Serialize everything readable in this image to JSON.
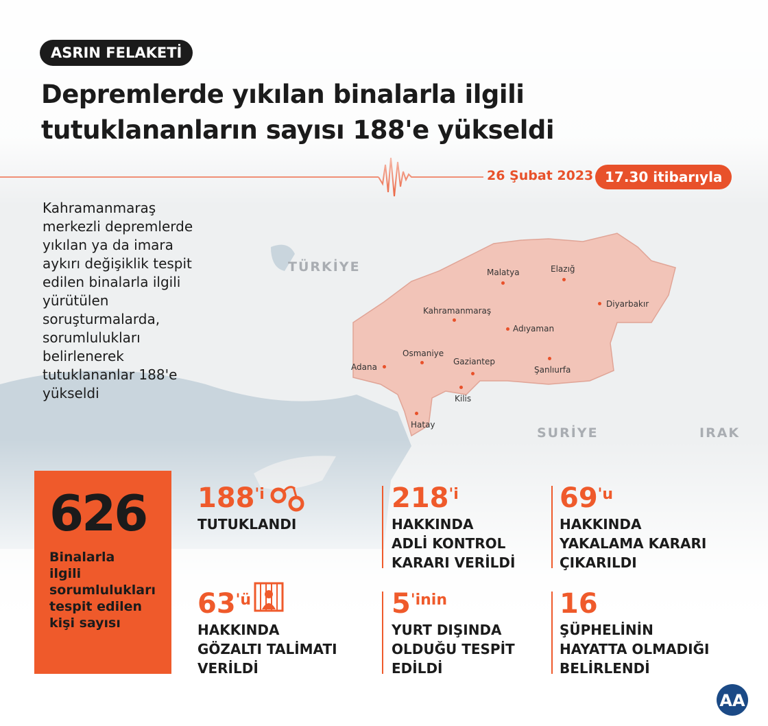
{
  "badge": "ASRIN FELAKETİ",
  "title": [
    "Depremlerde yıkılan binalarla ilgili",
    "tutuklananların sayısı 188'e yükseldi"
  ],
  "date": "26 Şubat 2023",
  "time": "17.30 itibarıyla",
  "paragraph": [
    "Kahramanmaraş",
    "merkezli depremlerde",
    "yıkılan ya da imara",
    "aykırı değişiklik tespit",
    "edilen binalarla ilgili",
    "yürütülen",
    "soruşturmalarda,",
    "sorumlulukları",
    "belirlenerek",
    "tutuklananlar 188'e",
    "yükseldi"
  ],
  "map": {
    "countries": [
      "TÜRKİYE",
      "SURİYE",
      "IRAK"
    ],
    "cities": [
      "Malatya",
      "Elazığ",
      "Diyarbakır",
      "Kahramanmaraş",
      "Adıyaman",
      "Osmaniye",
      "Gaziantep",
      "Şanlıurfa",
      "Adana",
      "Kilis",
      "Hatay"
    ],
    "region_color": "#f2c4b8"
  },
  "total": {
    "value": "626",
    "label": [
      "Binalarla",
      "ilgili",
      "sorumlulukları",
      "tespit edilen",
      "kişi sayısı"
    ]
  },
  "stats": [
    {
      "value": "188",
      "suffix": "'i",
      "label": [
        "TUTUKLANDI"
      ],
      "icon": "handcuffs-icon"
    },
    {
      "value": "218",
      "suffix": "'i",
      "label": [
        "HAKKINDA",
        "ADLİ KONTROL",
        "KARARI VERİLDİ"
      ]
    },
    {
      "value": "69",
      "suffix": "'u",
      "label": [
        "HAKKINDA",
        "YAKALAMA KARARI",
        "ÇIKARILDI"
      ]
    },
    {
      "value": "63",
      "suffix": "'ü",
      "label": [
        "HAKKINDA",
        "GÖZALTI TALİMATI",
        "VERİLDİ"
      ],
      "icon": "prisoner-icon"
    },
    {
      "value": "5",
      "suffix": "'inin",
      "label": [
        "YURT DIŞINDA",
        "OLDUĞU TESPİT",
        "EDİLDİ"
      ]
    },
    {
      "value": "16",
      "suffix": "",
      "label": [
        "ŞÜPHELİNİN",
        "HAYATTA OLMADIĞI",
        "BELİRLENDİ"
      ]
    }
  ],
  "colors": {
    "accent": "#ef5a2b",
    "dark": "#1b1b1b"
  },
  "logo": "AA"
}
